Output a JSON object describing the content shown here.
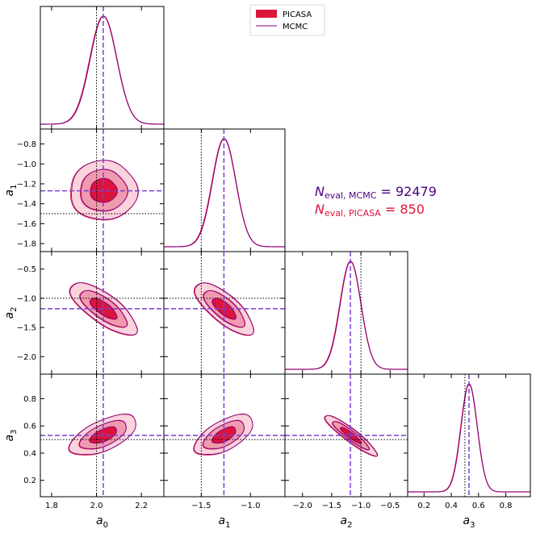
{
  "chart_data": {
    "type": "corner",
    "parameters": [
      {
        "label": "a",
        "subscript": "0",
        "range": [
          1.75,
          2.3
        ],
        "ticks": [
          1.8,
          2.0,
          2.2
        ],
        "tick_labels": [
          "1.8",
          "2.0",
          "2.2"
        ],
        "truth": 2.0,
        "best": 2.03,
        "mean": 2.03,
        "sd": 0.06
      },
      {
        "label": "a",
        "subscript": "1",
        "range": [
          -1.88,
          -0.65
        ],
        "ticks": [
          -1.8,
          -1.6,
          -1.4,
          -1.2,
          -1.0,
          -0.8
        ],
        "tick_labels": [
          "−1.8",
          "−1.6",
          "−1.4",
          "−1.2",
          "−1.0",
          "−0.8"
        ],
        "x_ticks": [
          -1.5,
          -1.0
        ],
        "x_tick_labels": [
          "−1.5",
          "−1.0"
        ],
        "truth": -1.5,
        "best": -1.27,
        "mean": -1.27,
        "sd": 0.12
      },
      {
        "label": "a",
        "subscript": "2",
        "range": [
          -2.3,
          -0.2
        ],
        "ticks": [
          -2.0,
          -1.5,
          -1.0,
          -0.5
        ],
        "tick_labels": [
          "−2.0",
          "−1.5",
          "−1.0",
          "−0.5"
        ],
        "truth": -1.0,
        "best": -1.18,
        "mean": -1.18,
        "sd": 0.18
      },
      {
        "label": "a",
        "subscript": "3",
        "range": [
          0.08,
          0.98
        ],
        "ticks": [
          0.2,
          0.4,
          0.6,
          0.8
        ],
        "tick_labels": [
          "0.2",
          "0.4",
          "0.6",
          "0.8"
        ],
        "truth": 0.5,
        "best": 0.53,
        "mean": 0.53,
        "sd": 0.06
      }
    ],
    "correlations": [
      [
        1,
        0,
        -0.75,
        0.6
      ],
      [
        0,
        1,
        -0.75,
        0.6
      ],
      [
        -0.75,
        -0.75,
        1,
        -0.92
      ],
      [
        0.6,
        0.6,
        -0.92,
        1
      ]
    ],
    "series": [
      {
        "name": "PICASA",
        "color": "#dc143c"
      },
      {
        "name": "MCMC",
        "color": "#800080"
      }
    ],
    "contour_fill_colors": [
      "#fad3dc",
      "#f09aaf",
      "#dc143c"
    ],
    "truth_line_color": "#000000",
    "best_line_color": "#7b3fd0",
    "legend_position": "top-center",
    "annotations": {
      "neval_mcmc": {
        "symbol": "N",
        "sub": "eval, MCMC",
        "text": " = 92479",
        "color": "#4b0082"
      },
      "neval_picasa": {
        "symbol": "N",
        "sub": "eval, PICASA",
        "text": " = 850",
        "color": "#dc143c"
      }
    }
  }
}
